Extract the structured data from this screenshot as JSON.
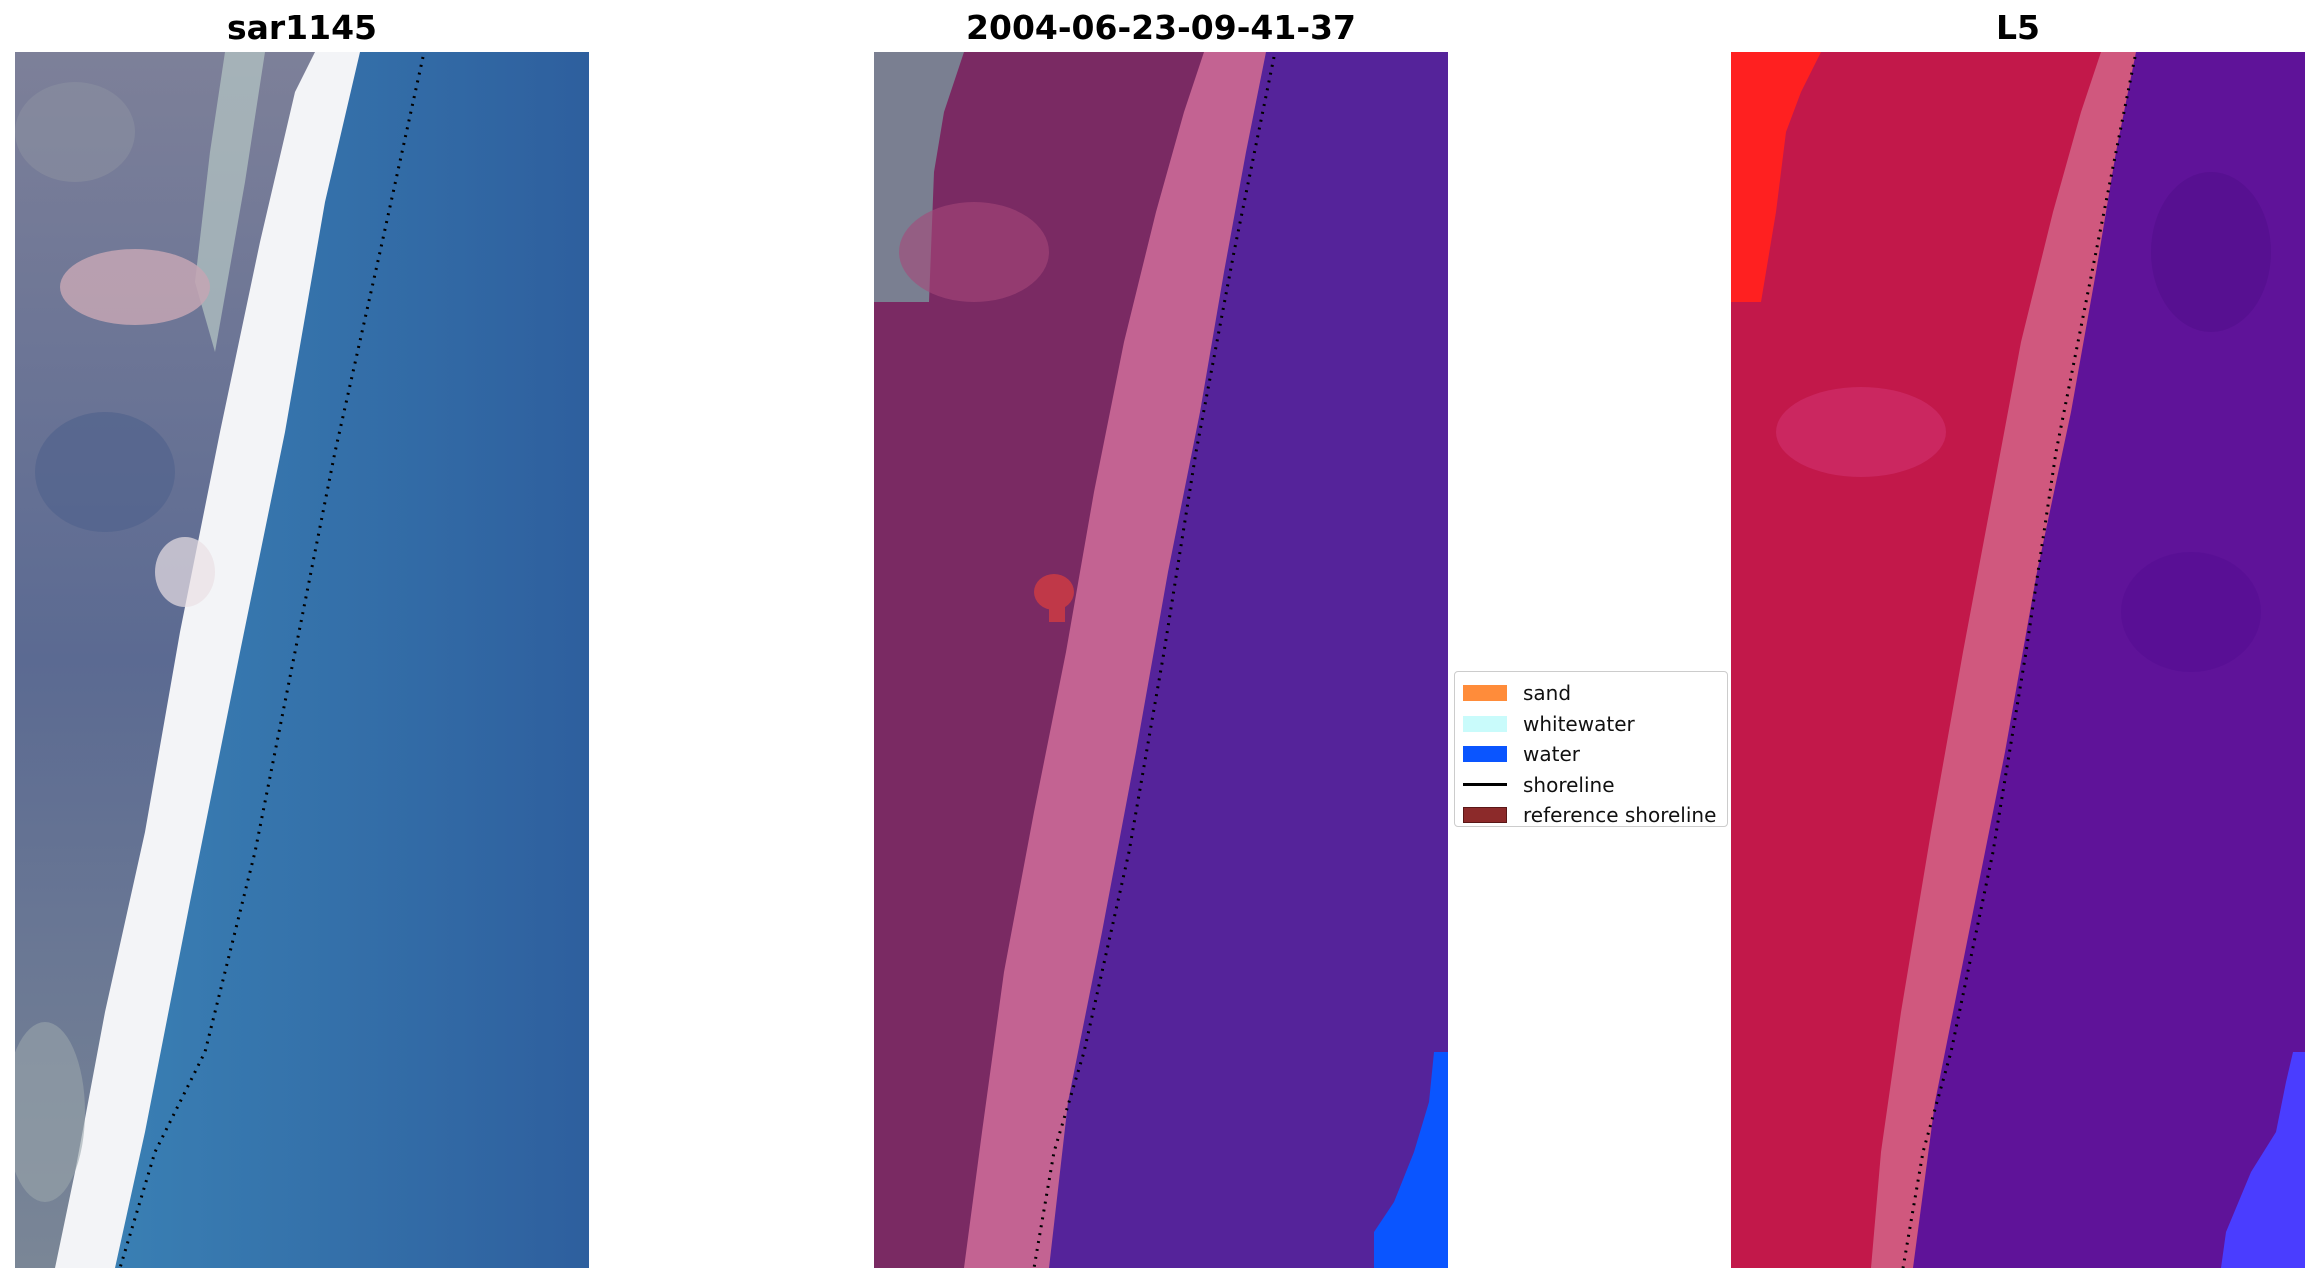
{
  "panels": [
    {
      "title": "sar1145"
    },
    {
      "title": "2004-06-23-09-41-37"
    },
    {
      "title": "L5"
    }
  ],
  "legend": {
    "items": [
      {
        "label": "sand",
        "color": "#ff8c3a"
      },
      {
        "label": "whitewater",
        "color": "#c9fbfb"
      },
      {
        "label": "water",
        "color": "#0a55ff"
      },
      {
        "label": "shoreline",
        "color": "#000000"
      },
      {
        "label": "reference shoreline",
        "color": "#8c2a2a"
      }
    ]
  },
  "colors": {
    "rgb_land": "#6e7895",
    "rgb_sand_pink": "#c4a6b4",
    "rgb_beach": "#f3f4f6",
    "rgb_sea": "#2f6ea6",
    "class_land": "#7a2a63",
    "class_beach": "#c36392",
    "class_water": "#55239a",
    "class_patch": "#c03848",
    "class_grey": "#7a7f91",
    "ndwi_land": "#c2184a",
    "ndwi_bright": "#ff2020",
    "ndwi_water": "#5f1399",
    "ndwi_edge": "#4a3dff"
  }
}
